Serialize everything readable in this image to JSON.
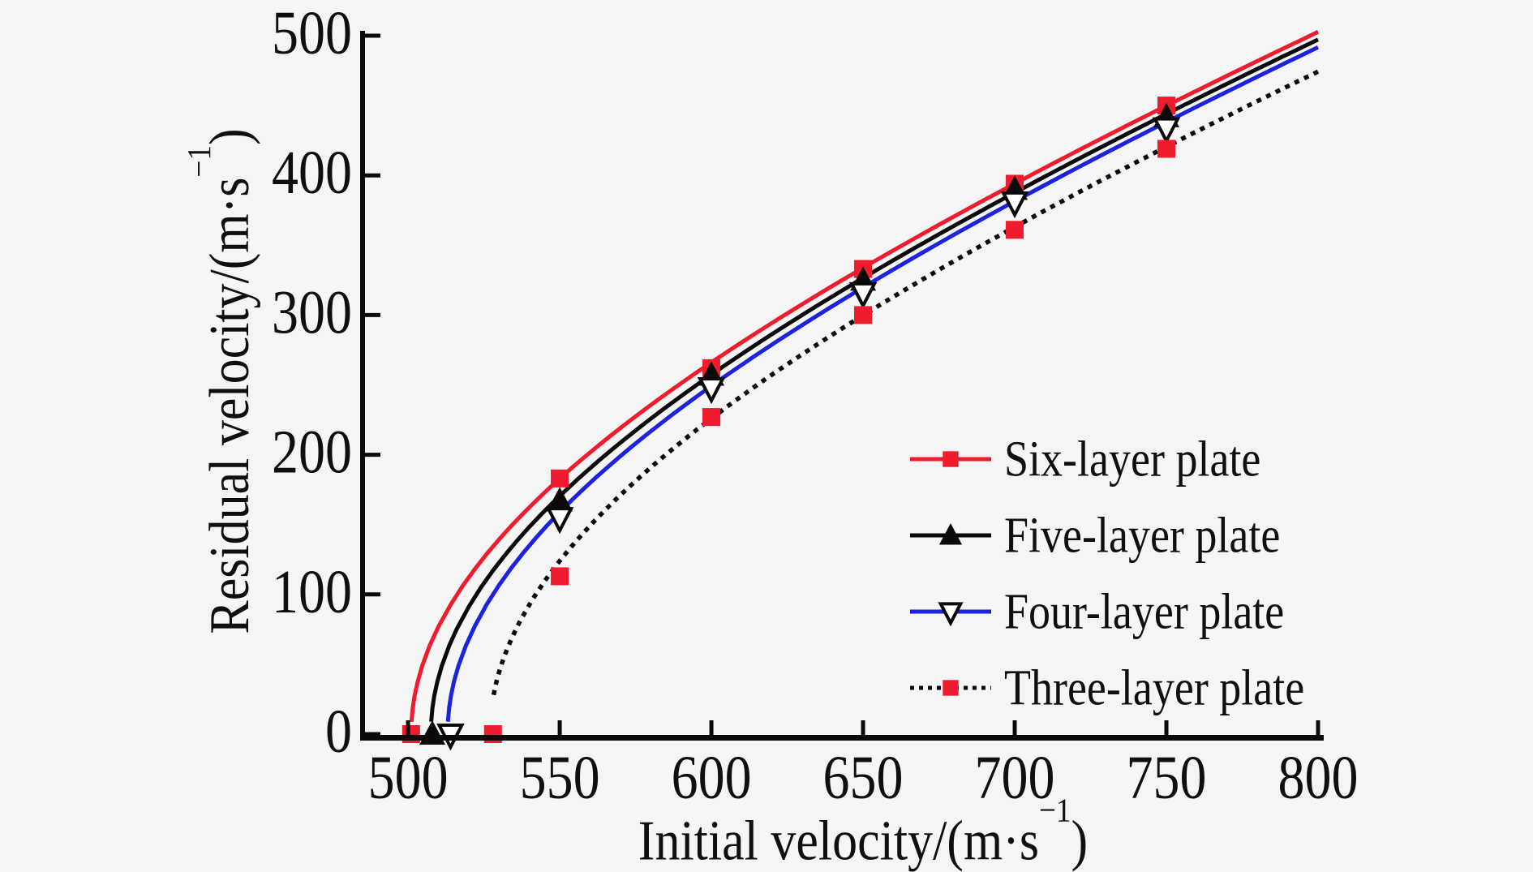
{
  "figure": {
    "background_color": "#f5f5f5",
    "text_color": "#0f0f0f",
    "accent_red": "#ee1c2d",
    "accent_blue": "#1c22dd",
    "accent_black": "#0a0a0a"
  },
  "labels": {
    "x_base": "Initial velocity/(m·s",
    "x_sup": "−1",
    "x_close": ")",
    "y_base": "Residual velocity/(m·s",
    "y_sup": "−1",
    "y_close": ")"
  },
  "chart_data": {
    "type": "line",
    "title": "",
    "xlabel": "Initial velocity/(m·s−1)",
    "ylabel": "Residual velocity/(m·s−1)",
    "xlim": [
      485,
      800
    ],
    "ylim": [
      0,
      500
    ],
    "xticks": [
      500,
      550,
      600,
      650,
      700,
      750,
      800
    ],
    "yticks": [
      0,
      100,
      200,
      300,
      400,
      500
    ],
    "grid": false,
    "legend_position": "right-center",
    "series": [
      {
        "name": "Six-layer plate",
        "color": "#ee1c2d",
        "line_style": "solid",
        "marker": "square",
        "marker_color": "#ee1c2d",
        "ballistic_limit": 501,
        "fit": {
          "a": 0.806,
          "vbl": 501,
          "p": 2
        },
        "points": [
          [
            501,
            0
          ],
          [
            550,
            183
          ],
          [
            600,
            262
          ],
          [
            650,
            333
          ],
          [
            700,
            394
          ],
          [
            750,
            450
          ]
        ]
      },
      {
        "name": "Five-layer plate",
        "color": "#0a0a0a",
        "line_style": "solid",
        "marker": "triangle-up",
        "marker_color": "#0a0a0a",
        "ballistic_limit": 508,
        "fit": {
          "a": 0.804,
          "vbl": 507.5,
          "p": 2
        },
        "points": [
          [
            508,
            0
          ],
          [
            550,
            167
          ],
          [
            600,
            257
          ],
          [
            650,
            325
          ],
          [
            700,
            390
          ],
          [
            750,
            442
          ]
        ]
      },
      {
        "name": "Four-layer plate",
        "color": "#1c22dd",
        "line_style": "solid",
        "marker": "triangle-down-open",
        "marker_color": "#ffffff",
        "marker_edge": "#0a0a0a",
        "ballistic_limit": 514,
        "fit": {
          "a": 0.801,
          "vbl": 513,
          "p": 2
        },
        "points": [
          [
            514,
            0
          ],
          [
            550,
            155
          ],
          [
            600,
            248
          ],
          [
            650,
            316
          ],
          [
            700,
            381
          ],
          [
            750,
            434
          ]
        ]
      },
      {
        "name": "Three-layer plate",
        "color": "#0a0a0a",
        "line_style": "dotted",
        "marker": "square",
        "marker_color": "#ee1c2d",
        "ballistic_limit": 528,
        "fit": {
          "a": 0.788,
          "vbl": 527,
          "p": 2
        },
        "points": [
          [
            528,
            0
          ],
          [
            550,
            113
          ],
          [
            600,
            227
          ],
          [
            650,
            300
          ],
          [
            700,
            361
          ],
          [
            750,
            419
          ]
        ]
      }
    ]
  }
}
